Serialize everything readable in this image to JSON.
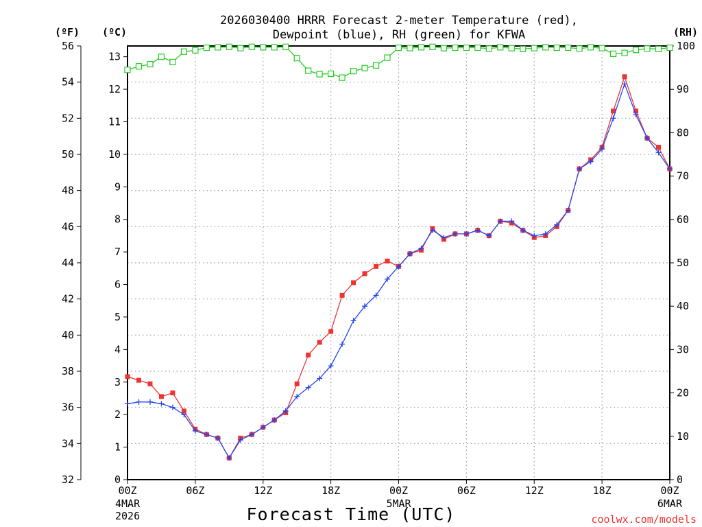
{
  "colors": {
    "temperature": "#ee3333",
    "dewpoint": "#2244ee",
    "rh": "#22cc22",
    "grid": "#999999",
    "credit": "#ee3333"
  },
  "chart_data": {
    "type": "line",
    "title_lines": [
      "2026030400 HRRR Forecast 2-meter Temperature (red),",
      "Dewpoint (blue), RH (green) for KFWA"
    ],
    "xlabel": "Forecast Time (UTC)",
    "credit": "coolwx.com/models",
    "x_hours_range": [
      0,
      48
    ],
    "x_ticks": [
      {
        "hour": 0,
        "label": "00Z",
        "sub": [
          "4MAR",
          "2026"
        ]
      },
      {
        "hour": 6,
        "label": "06Z",
        "sub": []
      },
      {
        "hour": 12,
        "label": "12Z",
        "sub": []
      },
      {
        "hour": 18,
        "label": "18Z",
        "sub": []
      },
      {
        "hour": 24,
        "label": "00Z",
        "sub": [
          "5MAR"
        ]
      },
      {
        "hour": 30,
        "label": "06Z",
        "sub": []
      },
      {
        "hour": 36,
        "label": "12Z",
        "sub": []
      },
      {
        "hour": 42,
        "label": "18Z",
        "sub": []
      },
      {
        "hour": 48,
        "label": "00Z",
        "sub": [
          "6MAR"
        ]
      }
    ],
    "y_left_f": {
      "unit": "(ºF)",
      "range": [
        32,
        56
      ],
      "ticks": [
        32,
        34,
        36,
        38,
        40,
        42,
        44,
        46,
        48,
        50,
        52,
        54,
        56
      ]
    },
    "y_left_c": {
      "unit": "(ºC)",
      "range": [
        0,
        13.33
      ],
      "ticks": [
        0,
        1,
        2,
        3,
        4,
        5,
        6,
        7,
        8,
        9,
        10,
        11,
        12,
        13
      ]
    },
    "y_right_rh": {
      "unit": "(RH)",
      "range": [
        0,
        100
      ],
      "ticks": [
        0,
        10,
        20,
        30,
        40,
        50,
        60,
        70,
        80,
        90,
        100
      ]
    },
    "series": [
      {
        "name": "2-meter Temperature",
        "units": "ºF",
        "color": "#ee3333",
        "marker": "filled-square",
        "values": [
          37.7,
          37.5,
          37.3,
          36.6,
          36.8,
          35.8,
          34.8,
          34.5,
          34.3,
          33.2,
          34.3,
          34.5,
          34.9,
          35.3,
          35.7,
          37.3,
          38.9,
          39.6,
          40.2,
          42.2,
          42.9,
          43.4,
          43.8,
          44.1,
          43.8,
          44.5,
          44.7,
          45.9,
          45.3,
          45.6,
          45.6,
          45.8,
          45.5,
          46.3,
          46.2,
          45.8,
          45.4,
          45.5,
          46.0,
          46.9,
          49.2,
          49.7,
          50.4,
          52.4,
          54.3,
          52.4,
          50.9,
          50.4,
          49.2
        ]
      },
      {
        "name": "Dewpoint",
        "units": "ºF",
        "color": "#2244ee",
        "marker": "plus",
        "values": [
          36.2,
          36.3,
          36.3,
          36.2,
          36.0,
          35.6,
          34.7,
          34.5,
          34.3,
          33.2,
          34.2,
          34.5,
          34.9,
          35.3,
          35.8,
          36.6,
          37.1,
          37.6,
          38.3,
          39.5,
          40.8,
          41.6,
          42.2,
          43.1,
          43.8,
          44.5,
          44.8,
          45.8,
          45.4,
          45.6,
          45.6,
          45.8,
          45.5,
          46.3,
          46.3,
          45.8,
          45.5,
          45.6,
          46.1,
          46.9,
          49.2,
          49.6,
          50.3,
          52.0,
          53.9,
          52.2,
          50.9,
          50.1,
          49.2
        ]
      },
      {
        "name": "RH",
        "units": "%",
        "color": "#22cc22",
        "marker": "open-square",
        "values": [
          94.5,
          95.3,
          95.8,
          97.5,
          96.3,
          98.7,
          99.0,
          99.6,
          99.7,
          99.8,
          99.5,
          99.8,
          99.7,
          99.7,
          99.8,
          97.2,
          94.3,
          93.5,
          93.6,
          92.7,
          94.2,
          94.9,
          95.5,
          97.3,
          99.6,
          99.5,
          99.7,
          99.8,
          99.5,
          99.6,
          99.6,
          99.6,
          99.4,
          99.7,
          99.5,
          99.3,
          99.5,
          99.7,
          99.6,
          99.6,
          99.4,
          99.7,
          99.5,
          98.2,
          98.4,
          99.1,
          99.4,
          99.3,
          99.6
        ]
      }
    ]
  }
}
